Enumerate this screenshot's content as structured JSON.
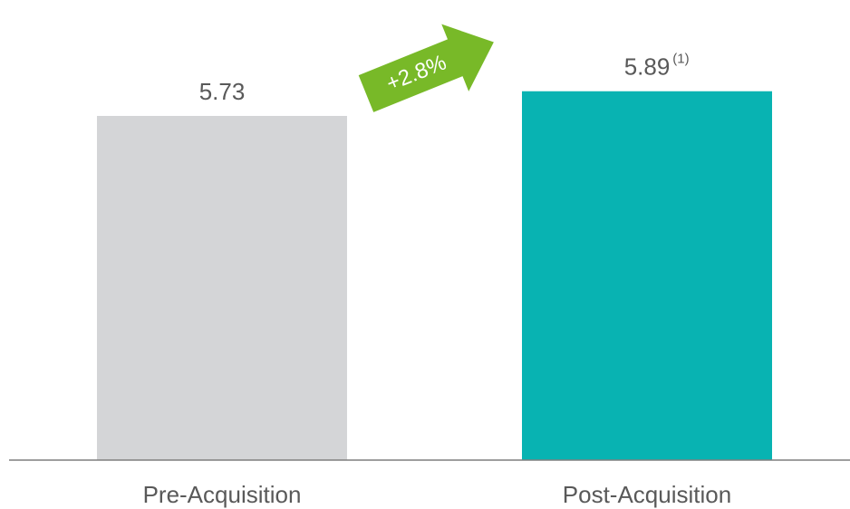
{
  "chart_data": {
    "type": "bar",
    "categories": [
      "Pre-Acquisition",
      "Post-Acquisition"
    ],
    "values": [
      5.73,
      5.89
    ],
    "colors": [
      "#d4d5d7",
      "#08b3b2"
    ],
    "footnote": "(1)",
    "annotation": "+2.8%",
    "annotation_color": "#78b928",
    "ylim": [
      3.5,
      6.0
    ]
  }
}
